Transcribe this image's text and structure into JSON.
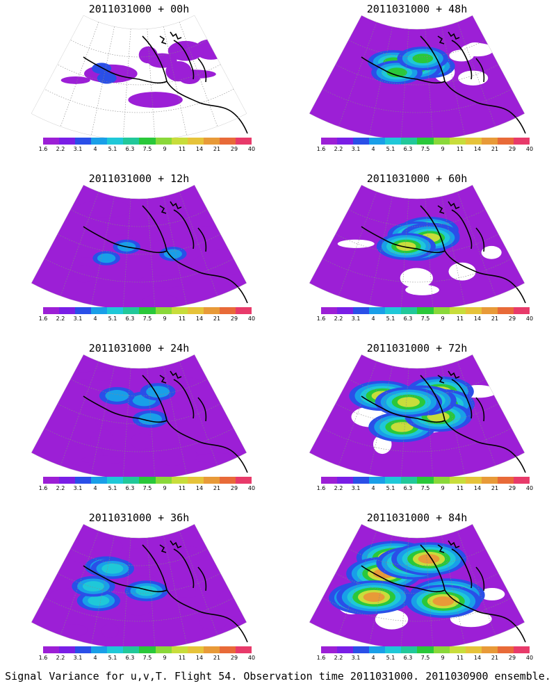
{
  "panels": [
    {
      "title": "2011031000 + 00h",
      "lead_hours": 0
    },
    {
      "title": "2011031000 + 48h",
      "lead_hours": 48
    },
    {
      "title": "2011031000 + 12h",
      "lead_hours": 12
    },
    {
      "title": "2011031000 + 60h",
      "lead_hours": 60
    },
    {
      "title": "2011031000 + 24h",
      "lead_hours": 24
    },
    {
      "title": "2011031000 + 72h",
      "lead_hours": 72
    },
    {
      "title": "2011031000 + 36h",
      "lead_hours": 36
    },
    {
      "title": "2011031000 + 84h",
      "lead_hours": 84
    }
  ],
  "colorbar": {
    "labels": [
      "1.6",
      "2.2",
      "3.1",
      "4",
      "5.1",
      "6.3",
      "7.5",
      "9",
      "11",
      "14",
      "21",
      "29",
      "40"
    ],
    "colors": [
      "#9c1fd6",
      "#7a1ee6",
      "#2a4fe8",
      "#199fe8",
      "#1fc8d8",
      "#21c89a",
      "#2ac83a",
      "#8ad83a",
      "#c8dd3b",
      "#e6c33a",
      "#e89a38",
      "#e86a38",
      "#e83a6a"
    ]
  },
  "palette": {
    "background": "#ffffff",
    "base_field": "#9c1fd6",
    "coastline": "#000000",
    "grid": "#888888"
  },
  "footer": {
    "caption": "Signal Variance for u,v,T. Flight 54. Observation time 2011031000. 2011030900 ensemble."
  }
}
